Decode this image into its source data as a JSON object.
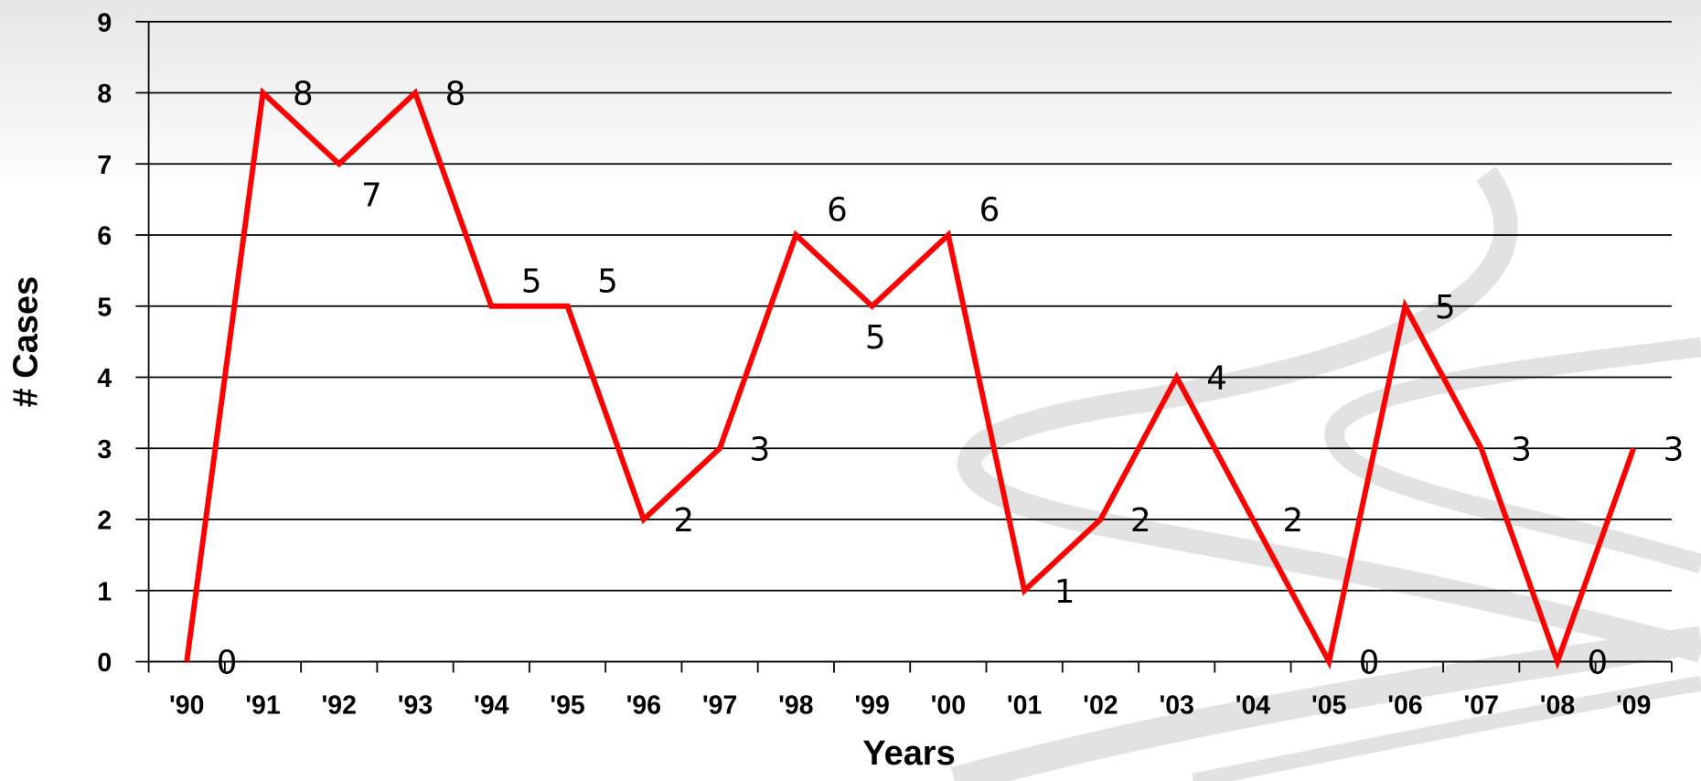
{
  "chart_data": {
    "type": "line",
    "x_label": "Years",
    "y_label": "# Cases",
    "categories": [
      "'90",
      "'91",
      "'92",
      "'93",
      "'94",
      "'95",
      "'96",
      "'97",
      "'98",
      "'99",
      "'00",
      "'01",
      "'02",
      "'03",
      "'04",
      "'05",
      "'06",
      "'07",
      "'08",
      "'09"
    ],
    "values": [
      0,
      8,
      7,
      8,
      5,
      5,
      2,
      3,
      6,
      5,
      6,
      1,
      2,
      4,
      2,
      0,
      5,
      3,
      0,
      3
    ],
    "color": "#ff0000",
    "ylim": [
      0,
      9
    ],
    "yticks": [
      0,
      1,
      2,
      3,
      4,
      5,
      6,
      7,
      8,
      9
    ],
    "grid": true
  }
}
